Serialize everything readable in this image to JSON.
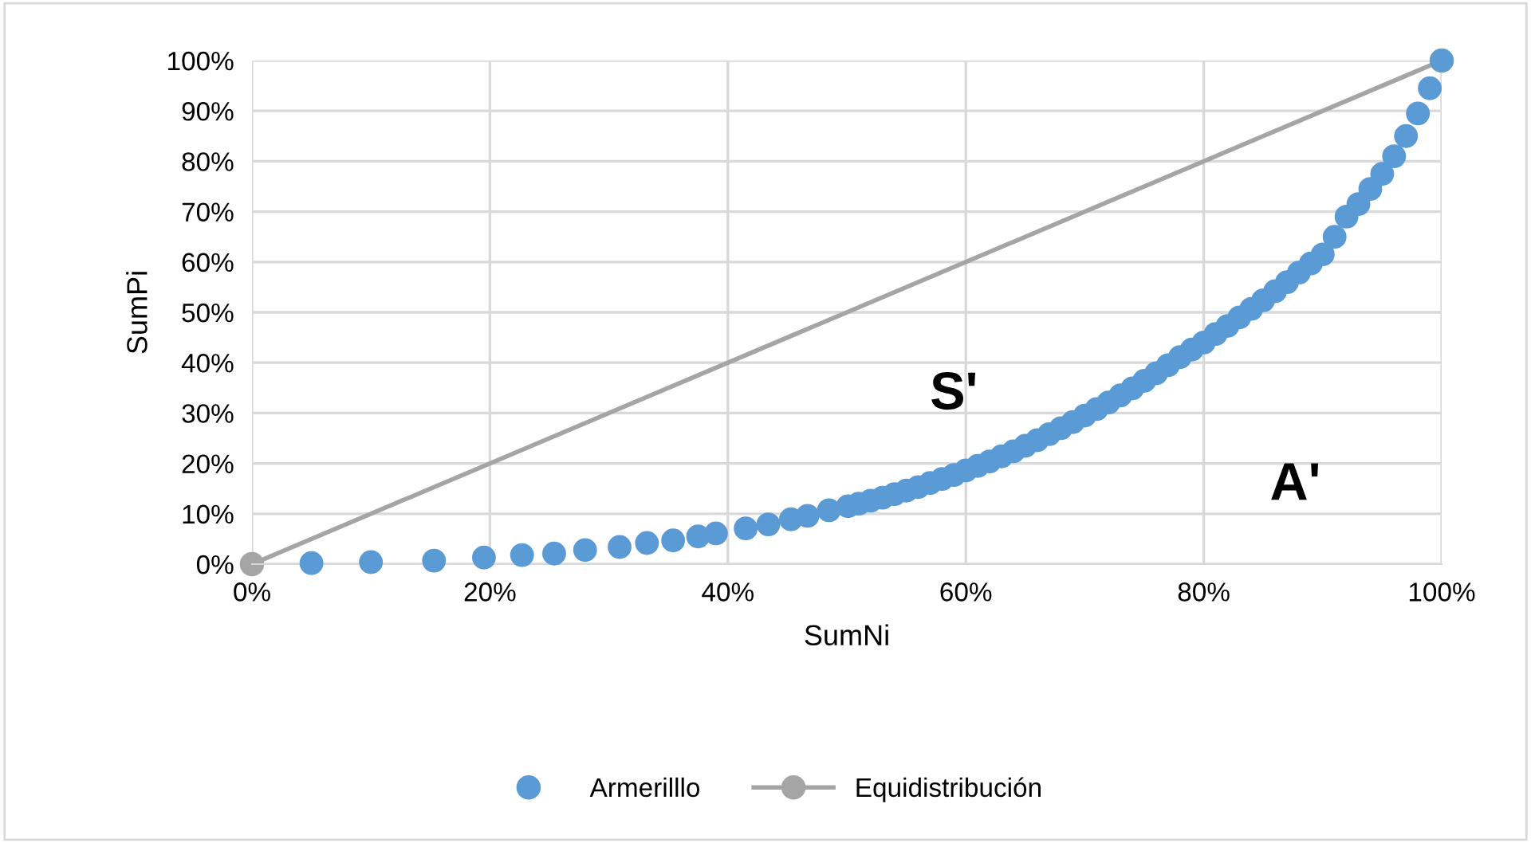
{
  "chart_data": {
    "type": "scatter",
    "xlabel": "SumNi",
    "ylabel": "SumPi",
    "xlim": [
      0,
      100
    ],
    "ylim": [
      0,
      100
    ],
    "xticks": [
      {
        "value": 0,
        "label": "0%"
      },
      {
        "value": 20,
        "label": "20%"
      },
      {
        "value": 40,
        "label": "40%"
      },
      {
        "value": 60,
        "label": "60%"
      },
      {
        "value": 80,
        "label": "80%"
      },
      {
        "value": 100,
        "label": "100%"
      }
    ],
    "yticks": [
      {
        "value": 0,
        "label": "0%"
      },
      {
        "value": 10,
        "label": "10%"
      },
      {
        "value": 20,
        "label": "20%"
      },
      {
        "value": 30,
        "label": "30%"
      },
      {
        "value": 40,
        "label": "40%"
      },
      {
        "value": 50,
        "label": "50%"
      },
      {
        "value": 60,
        "label": "60%"
      },
      {
        "value": 70,
        "label": "70%"
      },
      {
        "value": 80,
        "label": "80%"
      },
      {
        "value": 90,
        "label": "90%"
      },
      {
        "value": 100,
        "label": "100%"
      }
    ],
    "grid": true,
    "legend": "bottom",
    "marker": "circle",
    "series": [
      {
        "name": "Armerilllo",
        "color": "#5b9bd5",
        "x": [
          5.0,
          10.0,
          15.3,
          19.5,
          22.7,
          25.4,
          28.0,
          30.9,
          33.2,
          35.4,
          37.5,
          39.0,
          41.5,
          43.4,
          45.3,
          46.7,
          48.5,
          50.1,
          51,
          52,
          53,
          54,
          55,
          56,
          57,
          58,
          59,
          60,
          61,
          62,
          63,
          64,
          65,
          66,
          67,
          68,
          69,
          70,
          71,
          72,
          73,
          74,
          75,
          76,
          77,
          78,
          79,
          80,
          81,
          82,
          83,
          84,
          85,
          86,
          87,
          88,
          89,
          90,
          91,
          92,
          93,
          94,
          95,
          96,
          97,
          98,
          99,
          100
        ],
        "values": [
          0.2,
          0.4,
          0.7,
          1.3,
          1.8,
          2.1,
          2.8,
          3.4,
          4.2,
          4.7,
          5.5,
          6.1,
          7.1,
          7.9,
          8.9,
          9.6,
          10.7,
          11.5,
          12.0,
          12.6,
          13.2,
          13.9,
          14.6,
          15.3,
          16.1,
          16.9,
          17.7,
          18.6,
          19.5,
          20.4,
          21.4,
          22.4,
          23.5,
          24.6,
          25.8,
          27.0,
          28.2,
          29.5,
          30.8,
          32.1,
          33.5,
          34.9,
          36.4,
          37.9,
          39.5,
          41.1,
          42.6,
          44.0,
          45.7,
          47.3,
          49.0,
          50.7,
          52.4,
          54.2,
          56.0,
          57.9,
          59.7,
          61.5,
          65.0,
          69.0,
          71.5,
          74.5,
          77.5,
          81.0,
          85.0,
          89.5,
          94.5,
          100
        ]
      },
      {
        "name": "Equidistribución",
        "type": "line",
        "color": "#a5a5a5",
        "x": [
          0,
          100
        ],
        "values": [
          0,
          100
        ]
      }
    ],
    "annotations": [
      "S'",
      "A'"
    ]
  }
}
